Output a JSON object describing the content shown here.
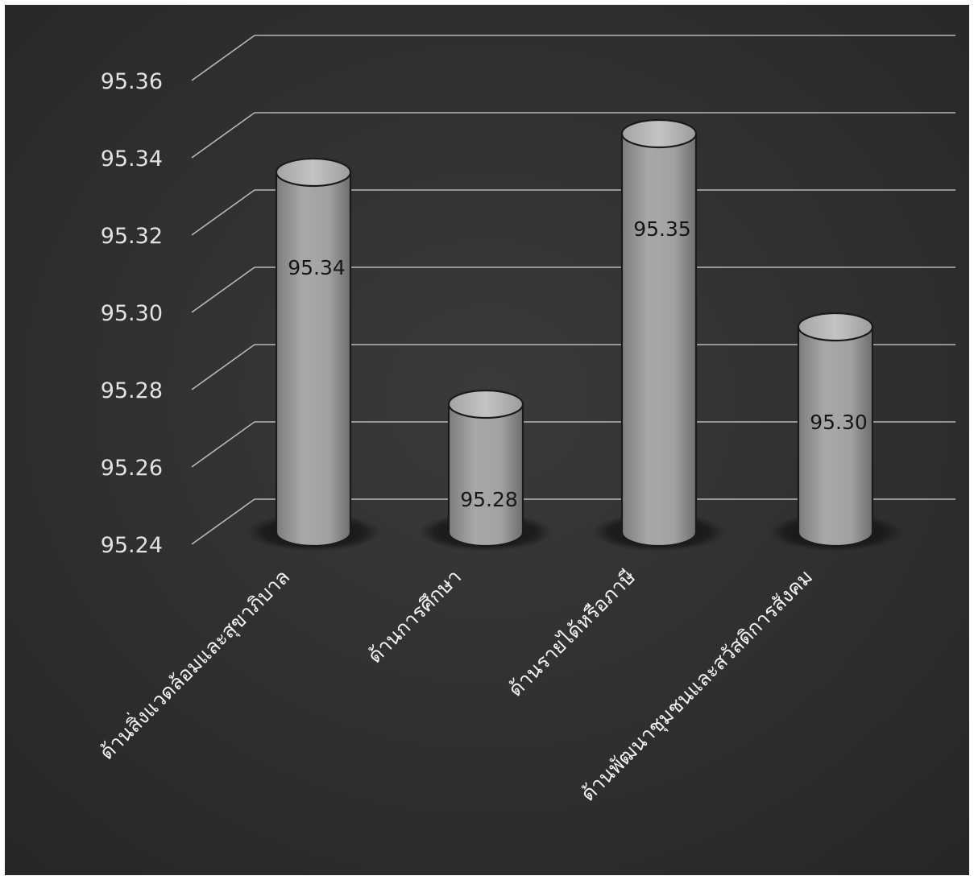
{
  "chart_data": {
    "type": "bar",
    "style": "3d-cylinder",
    "categories": [
      "ด้านสิ่งแวดล้อมและสุขาภิบาล",
      "ด้านการศึกษา",
      "ด้านรายได้หรือภาษี",
      "ด้านพัฒนาชุมชนและสวัสดิการสังคม"
    ],
    "values": [
      95.34,
      95.28,
      95.35,
      95.3
    ],
    "data_labels": [
      "95.34",
      "95.28",
      "95.35",
      "95.30"
    ],
    "y_ticks": [
      "95.24",
      "95.26",
      "95.28",
      "95.30",
      "95.32",
      "95.34",
      "95.36"
    ],
    "ylim": [
      95.24,
      95.36
    ],
    "y_step": 0.02,
    "grid": true,
    "legend": "none",
    "colors": {
      "background": "#2e2e2e",
      "gridline": "#cfcfcf",
      "bar_body": "#9a9a9a",
      "bar_top": "#b8b8b8",
      "bar_shadow": "#151515",
      "tick_text": "#e2e2e2",
      "category_text": "#f2f2f2",
      "data_label_text": "#161616"
    }
  }
}
